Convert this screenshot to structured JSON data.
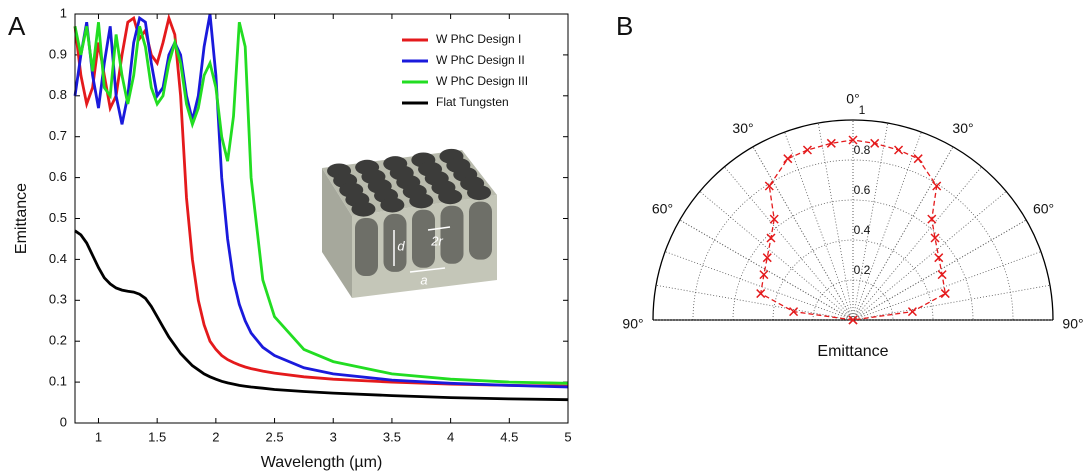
{
  "chart_data": [
    {
      "type": "line",
      "panel_label": "A",
      "xlabel": "Wavelength (µm)",
      "ylabel": "Emittance",
      "x": [
        0.8,
        0.85,
        0.9,
        0.95,
        1.0,
        1.05,
        1.1,
        1.15,
        1.2,
        1.25,
        1.3,
        1.35,
        1.4,
        1.45,
        1.5,
        1.55,
        1.6,
        1.65,
        1.7,
        1.75,
        1.8,
        1.85,
        1.9,
        1.95,
        2.0,
        2.05,
        2.1,
        2.15,
        2.2,
        2.25,
        2.3,
        2.4,
        2.5,
        2.75,
        3,
        3.5,
        4,
        4.5,
        5
      ],
      "series": [
        {
          "name": "W PhC Design I",
          "color": "#e41a1c",
          "values": [
            0.97,
            0.85,
            0.78,
            0.82,
            0.93,
            0.85,
            0.77,
            0.8,
            0.9,
            0.98,
            0.99,
            0.94,
            0.96,
            0.9,
            0.88,
            0.93,
            0.99,
            0.95,
            0.8,
            0.55,
            0.4,
            0.3,
            0.24,
            0.2,
            0.18,
            0.165,
            0.155,
            0.148,
            0.142,
            0.137,
            0.133,
            0.127,
            0.122,
            0.113,
            0.107,
            0.1,
            0.095,
            0.092,
            0.09
          ]
        },
        {
          "name": "W PhC Design II",
          "color": "#1a1adc",
          "values": [
            0.8,
            0.9,
            0.98,
            0.85,
            0.77,
            0.88,
            0.97,
            0.8,
            0.73,
            0.8,
            0.93,
            0.99,
            0.98,
            0.88,
            0.8,
            0.82,
            0.9,
            0.93,
            0.9,
            0.8,
            0.74,
            0.8,
            0.92,
            1.0,
            0.85,
            0.6,
            0.45,
            0.35,
            0.29,
            0.25,
            0.22,
            0.185,
            0.165,
            0.135,
            0.12,
            0.105,
            0.097,
            0.092,
            0.088
          ]
        },
        {
          "name": "W PhC Design III",
          "color": "#22dd22",
          "values": [
            0.97,
            0.9,
            0.97,
            0.86,
            0.98,
            0.82,
            0.8,
            0.95,
            0.85,
            0.78,
            0.85,
            0.97,
            0.92,
            0.82,
            0.78,
            0.8,
            0.88,
            0.93,
            0.88,
            0.78,
            0.73,
            0.77,
            0.85,
            0.88,
            0.82,
            0.7,
            0.64,
            0.75,
            0.98,
            0.92,
            0.6,
            0.35,
            0.26,
            0.18,
            0.15,
            0.12,
            0.107,
            0.1,
            0.097
          ]
        },
        {
          "name": "Flat Tungsten",
          "color": "#000000",
          "values": [
            0.47,
            0.46,
            0.44,
            0.41,
            0.38,
            0.355,
            0.34,
            0.33,
            0.325,
            0.322,
            0.32,
            0.315,
            0.305,
            0.285,
            0.26,
            0.235,
            0.21,
            0.19,
            0.17,
            0.155,
            0.14,
            0.13,
            0.12,
            0.113,
            0.107,
            0.102,
            0.098,
            0.095,
            0.092,
            0.09,
            0.088,
            0.085,
            0.082,
            0.077,
            0.073,
            0.067,
            0.062,
            0.059,
            0.057
          ]
        }
      ],
      "xlim": [
        0.8,
        5
      ],
      "xticks": [
        1,
        1.5,
        2,
        2.5,
        3,
        3.5,
        4,
        4.5,
        5
      ],
      "ylim": [
        0,
        1
      ],
      "yticks": [
        0,
        0.1,
        0.2,
        0.3,
        0.4,
        0.5,
        0.6,
        0.7,
        0.8,
        0.9,
        1
      ],
      "legend": "upper right",
      "annotations": [
        "d",
        "2r",
        "a"
      ]
    },
    {
      "type": "polar",
      "panel_label": "B",
      "xlabel": "Emittance",
      "color": "#e41a1c",
      "marker": "x",
      "linestyle": "dashed",
      "theta": [
        -90,
        -82,
        -74,
        -63,
        -54,
        -45,
        -38,
        -32,
        -22,
        -15,
        -7,
        0,
        7,
        15,
        22,
        32,
        38,
        45,
        54,
        63,
        74,
        82,
        90
      ],
      "values": [
        0,
        0.3,
        0.48,
        0.5,
        0.53,
        0.58,
        0.64,
        0.79,
        0.87,
        0.88,
        0.89,
        0.9,
        0.89,
        0.88,
        0.87,
        0.79,
        0.64,
        0.58,
        0.53,
        0.5,
        0.48,
        0.3,
        0
      ],
      "rlim": [
        0,
        1
      ],
      "rticks": [
        0.2,
        0.4,
        0.6,
        0.8,
        1
      ],
      "thetaticks": [
        {
          "value": -90,
          "label": "90°"
        },
        {
          "value": -60,
          "label": "60°"
        },
        {
          "value": -30,
          "label": "30°"
        },
        {
          "value": 0,
          "label": "0°"
        },
        {
          "value": 30,
          "label": "30°"
        },
        {
          "value": 60,
          "label": "60°"
        },
        {
          "value": 90,
          "label": "90°"
        }
      ],
      "theta_grid_step": 10,
      "grid": true
    }
  ]
}
